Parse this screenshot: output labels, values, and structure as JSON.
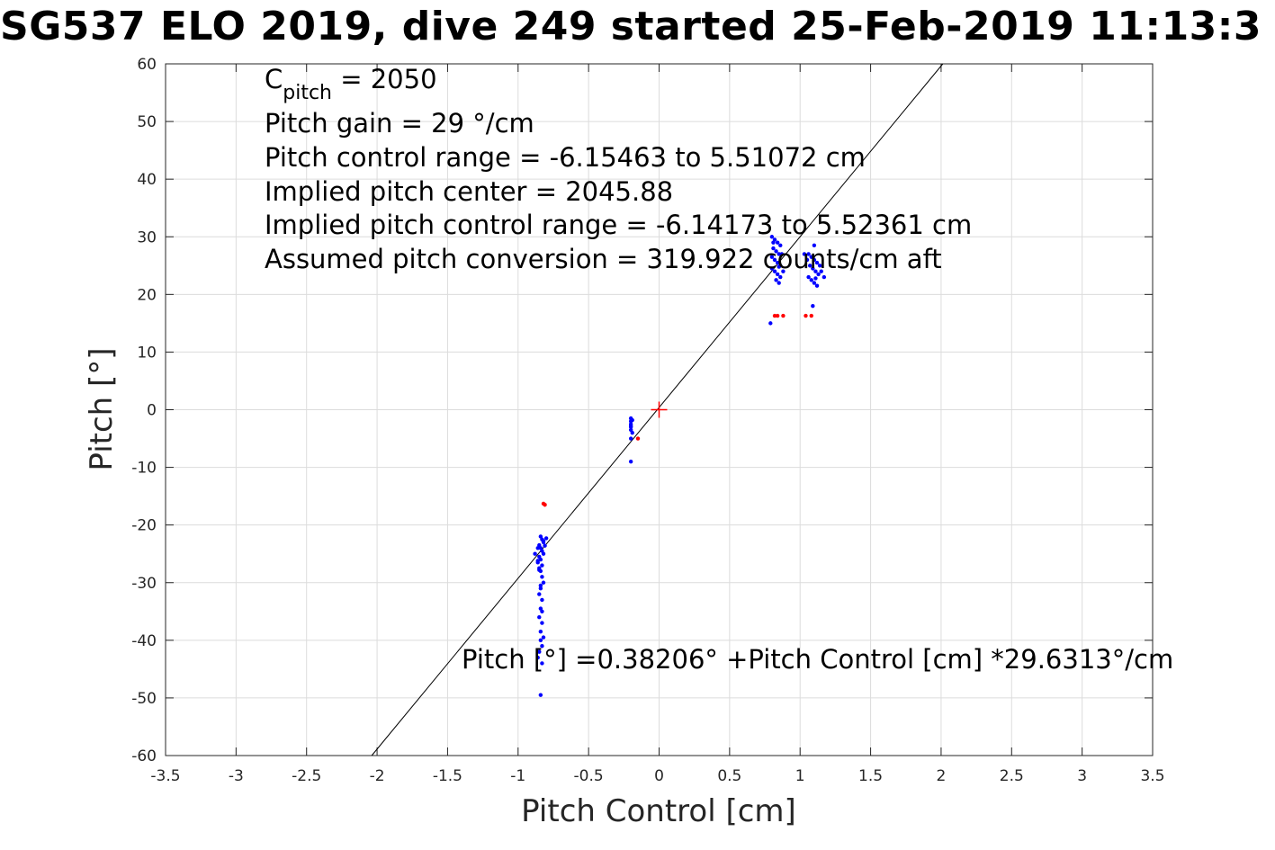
{
  "chart_data": {
    "type": "scatter",
    "title": "SG537 ELO 2019, dive 249 started 25-Feb-2019 11:13:3",
    "xlabel": "Pitch Control [cm]",
    "ylabel": "Pitch [°]",
    "xlim": [
      -3.5,
      3.5
    ],
    "ylim": [
      -60,
      60
    ],
    "xticks": [
      "-3.5",
      "-3",
      "-2.5",
      "-2",
      "-1.5",
      "-1",
      "-0.5",
      "0",
      "0.5",
      "1",
      "1.5",
      "2",
      "2.5",
      "3",
      "3.5"
    ],
    "yticks": [
      "-60",
      "-50",
      "-40",
      "-30",
      "-20",
      "-10",
      "0",
      "10",
      "20",
      "30",
      "40",
      "50",
      "60"
    ],
    "grid": true,
    "annotations": {
      "cpitch_letter": "C",
      "cpitch_sub": "pitch",
      "cpitch_value": " = 2050",
      "line2": "Pitch gain = 29 °/cm",
      "line3": "Pitch control range = -6.15463 to 5.51072 cm",
      "line4": "Implied pitch center = 2045.88",
      "line5": "Implied pitch control range = -6.14173 to 5.52361 cm",
      "line6": "Assumed pitch conversion = 319.922 counts/cm aft",
      "fit_equation": "Pitch [°] =0.38206° +Pitch Control [cm] *29.6313°/cm"
    },
    "fit_line": {
      "intercept": 0.38206,
      "slope": 29.6313,
      "color": "#000000"
    },
    "center_marker": {
      "x": 0,
      "y": 0,
      "color": "#ff0000"
    },
    "series": [
      {
        "color": "#0000ff",
        "points": [
          [
            -0.84,
            -22
          ],
          [
            -0.83,
            -22.5
          ],
          [
            -0.82,
            -23
          ],
          [
            -0.85,
            -23.5
          ],
          [
            -0.84,
            -24
          ],
          [
            -0.83,
            -24.5
          ],
          [
            -0.82,
            -25
          ],
          [
            -0.85,
            -25.5
          ],
          [
            -0.84,
            -26
          ],
          [
            -0.86,
            -26.5
          ],
          [
            -0.83,
            -27
          ],
          [
            -0.85,
            -27.5
          ],
          [
            -0.84,
            -28
          ],
          [
            -0.83,
            -29
          ],
          [
            -0.82,
            -30
          ],
          [
            -0.84,
            -31
          ],
          [
            -0.85,
            -32
          ],
          [
            -0.83,
            -33
          ],
          [
            -0.84,
            -34.5
          ],
          [
            -0.85,
            -36
          ],
          [
            -0.83,
            -37
          ],
          [
            -0.84,
            -38.5
          ],
          [
            -0.84,
            -40
          ],
          [
            -0.83,
            -41
          ],
          [
            -0.85,
            -42
          ],
          [
            -0.86,
            -43
          ],
          [
            -0.83,
            -44
          ],
          [
            -0.84,
            -49.5
          ],
          [
            -0.88,
            -25
          ],
          [
            -0.86,
            -24
          ],
          [
            -0.82,
            -22.8
          ],
          [
            -0.81,
            -23.6
          ],
          [
            -0.85,
            -27.8
          ],
          [
            -0.84,
            -30.5
          ],
          [
            -0.83,
            -35
          ],
          [
            -0.82,
            -39.5
          ],
          [
            -0.86,
            -26.2
          ],
          [
            -0.8,
            -22.3
          ],
          [
            -0.2,
            -1.5
          ],
          [
            -0.2,
            -2
          ],
          [
            -0.2,
            -2.5
          ],
          [
            -0.2,
            -3
          ],
          [
            -0.2,
            -3.5
          ],
          [
            -0.19,
            -4
          ],
          [
            -0.2,
            -5
          ],
          [
            -0.2,
            -9
          ],
          [
            -0.19,
            -1.8
          ],
          [
            -0.2,
            -2.8
          ],
          [
            0.8,
            30
          ],
          [
            0.82,
            29.5
          ],
          [
            0.84,
            29
          ],
          [
            0.86,
            28.5
          ],
          [
            0.81,
            28
          ],
          [
            0.83,
            27.5
          ],
          [
            0.85,
            27
          ],
          [
            0.8,
            26.5
          ],
          [
            0.82,
            26
          ],
          [
            0.84,
            25.5
          ],
          [
            0.86,
            25
          ],
          [
            0.8,
            24.5
          ],
          [
            0.82,
            24
          ],
          [
            0.84,
            23.5
          ],
          [
            0.86,
            23
          ],
          [
            0.83,
            22.5
          ],
          [
            0.85,
            22
          ],
          [
            0.79,
            15
          ],
          [
            0.88,
            24
          ],
          [
            0.87,
            27
          ],
          [
            0.81,
            29
          ],
          [
            0.85,
            24.8
          ],
          [
            1.06,
            27
          ],
          [
            1.08,
            26.5
          ],
          [
            1.1,
            26
          ],
          [
            1.12,
            25.5
          ],
          [
            1.07,
            25
          ],
          [
            1.09,
            24.5
          ],
          [
            1.11,
            24
          ],
          [
            1.13,
            23.5
          ],
          [
            1.06,
            23
          ],
          [
            1.08,
            22.5
          ],
          [
            1.1,
            22
          ],
          [
            1.12,
            21.5
          ],
          [
            1.1,
            28.5
          ],
          [
            1.09,
            18
          ],
          [
            1.15,
            24
          ],
          [
            1.17,
            23
          ],
          [
            1.14,
            25
          ],
          [
            1.03,
            27
          ],
          [
            1.05,
            26
          ],
          [
            1.11,
            22.8
          ]
        ]
      },
      {
        "color": "#ff0000",
        "points": [
          [
            -0.82,
            -16.3
          ],
          [
            -0.81,
            -16.5
          ],
          [
            -0.15,
            -5
          ],
          [
            0.82,
            16.3
          ],
          [
            0.84,
            16.3
          ],
          [
            0.88,
            16.3
          ],
          [
            1.04,
            16.3
          ],
          [
            1.08,
            16.3
          ]
        ]
      }
    ]
  }
}
